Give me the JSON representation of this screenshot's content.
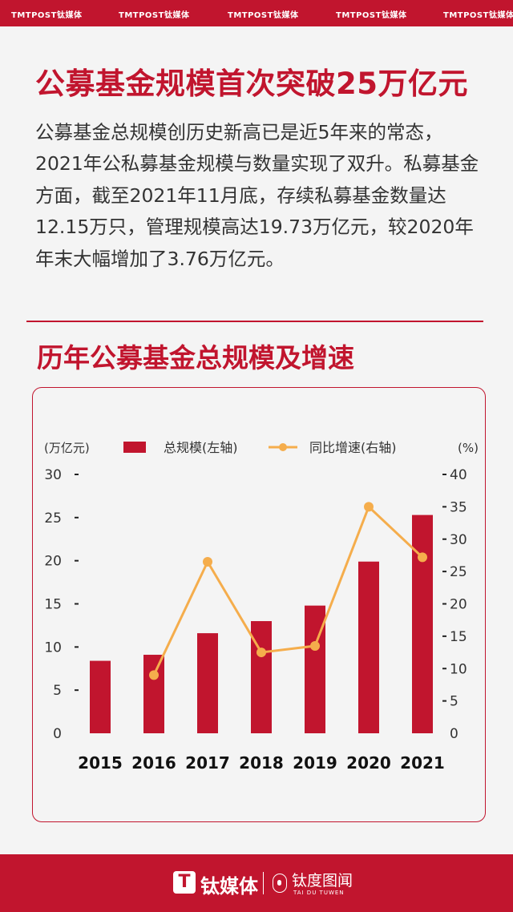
{
  "header": {
    "brand": "TMTPOST钛媒体"
  },
  "title": "公募基金规模首次突破25万亿元",
  "intro": "公募基金总规模创历史新高已是近5年来的常态，2021年公私募基金规模与数量实现了双升。私募基金方面，截至2021年11月底，存续私募基金数量达12.15万只，管理规模高达19.73万亿元，较2020年年末大幅增加了3.76万亿元。",
  "section_title": "历年公募基金总规模及增速",
  "footer": {
    "logo_glyph": "T",
    "brand": "钛媒体",
    "sub_brand": "钛度图闻",
    "sub_brand_en": "TAI DU TUWEN"
  },
  "colors": {
    "accent": "#c1152e",
    "bar": "#c1152e",
    "line": "#f5ad4c"
  },
  "chart_data": {
    "type": "bar",
    "categories": [
      "2015",
      "2016",
      "2017",
      "2018",
      "2019",
      "2020",
      "2021"
    ],
    "series": [
      {
        "name": "总规模(左轴)",
        "type": "bar",
        "axis": "left",
        "values": [
          8.4,
          9.1,
          11.6,
          13.0,
          14.8,
          19.9,
          25.3
        ]
      },
      {
        "name": "同比增速(右轴)",
        "type": "line",
        "axis": "right",
        "values": [
          null,
          9.0,
          26.5,
          12.5,
          13.5,
          35.0,
          27.2
        ]
      }
    ],
    "yleft_label": "(万亿元)",
    "yright_label": "(%)",
    "yleft_lim": [
      0,
      30
    ],
    "yright_lim": [
      0,
      40
    ],
    "yleft_ticks": [
      0,
      5,
      10,
      15,
      20,
      25,
      30
    ],
    "yright_ticks": [
      0,
      5,
      10,
      15,
      20,
      25,
      30,
      35,
      40
    ],
    "legend_position": "top",
    "grid": false
  }
}
